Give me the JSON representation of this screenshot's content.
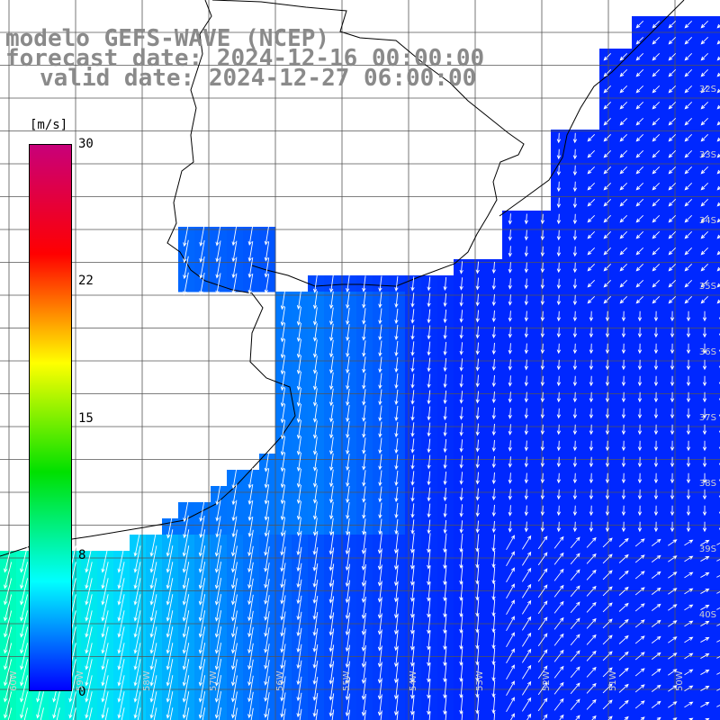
{
  "title": {
    "model": "modelo GEFS-WAVE (NCEP)",
    "forecast": "forecast date: 2024-12-16 00:00:00",
    "valid": "valid date: 2024-12-27 06:00:00"
  },
  "colorbar": {
    "unit": "[m/s]",
    "ticks": [
      "30",
      "22",
      "15",
      "8",
      "0"
    ],
    "colors": [
      "#c8007a",
      "#ff0000",
      "#ffff00",
      "#00e000",
      "#00ffff",
      "#0000ff"
    ]
  },
  "lat_labels": [
    "32S",
    "33S",
    "34S",
    "35S",
    "36S",
    "37S",
    "38S",
    "39S",
    "40S"
  ],
  "lon_labels": [
    "60W",
    "59W",
    "58W",
    "57W",
    "56W",
    "55W",
    "54W",
    "53W",
    "52W",
    "51W",
    "50W"
  ],
  "palette": {
    "land": "#ffffff",
    "grid": "#555555",
    "coast": "#000000",
    "arrow": "#ffffff"
  }
}
